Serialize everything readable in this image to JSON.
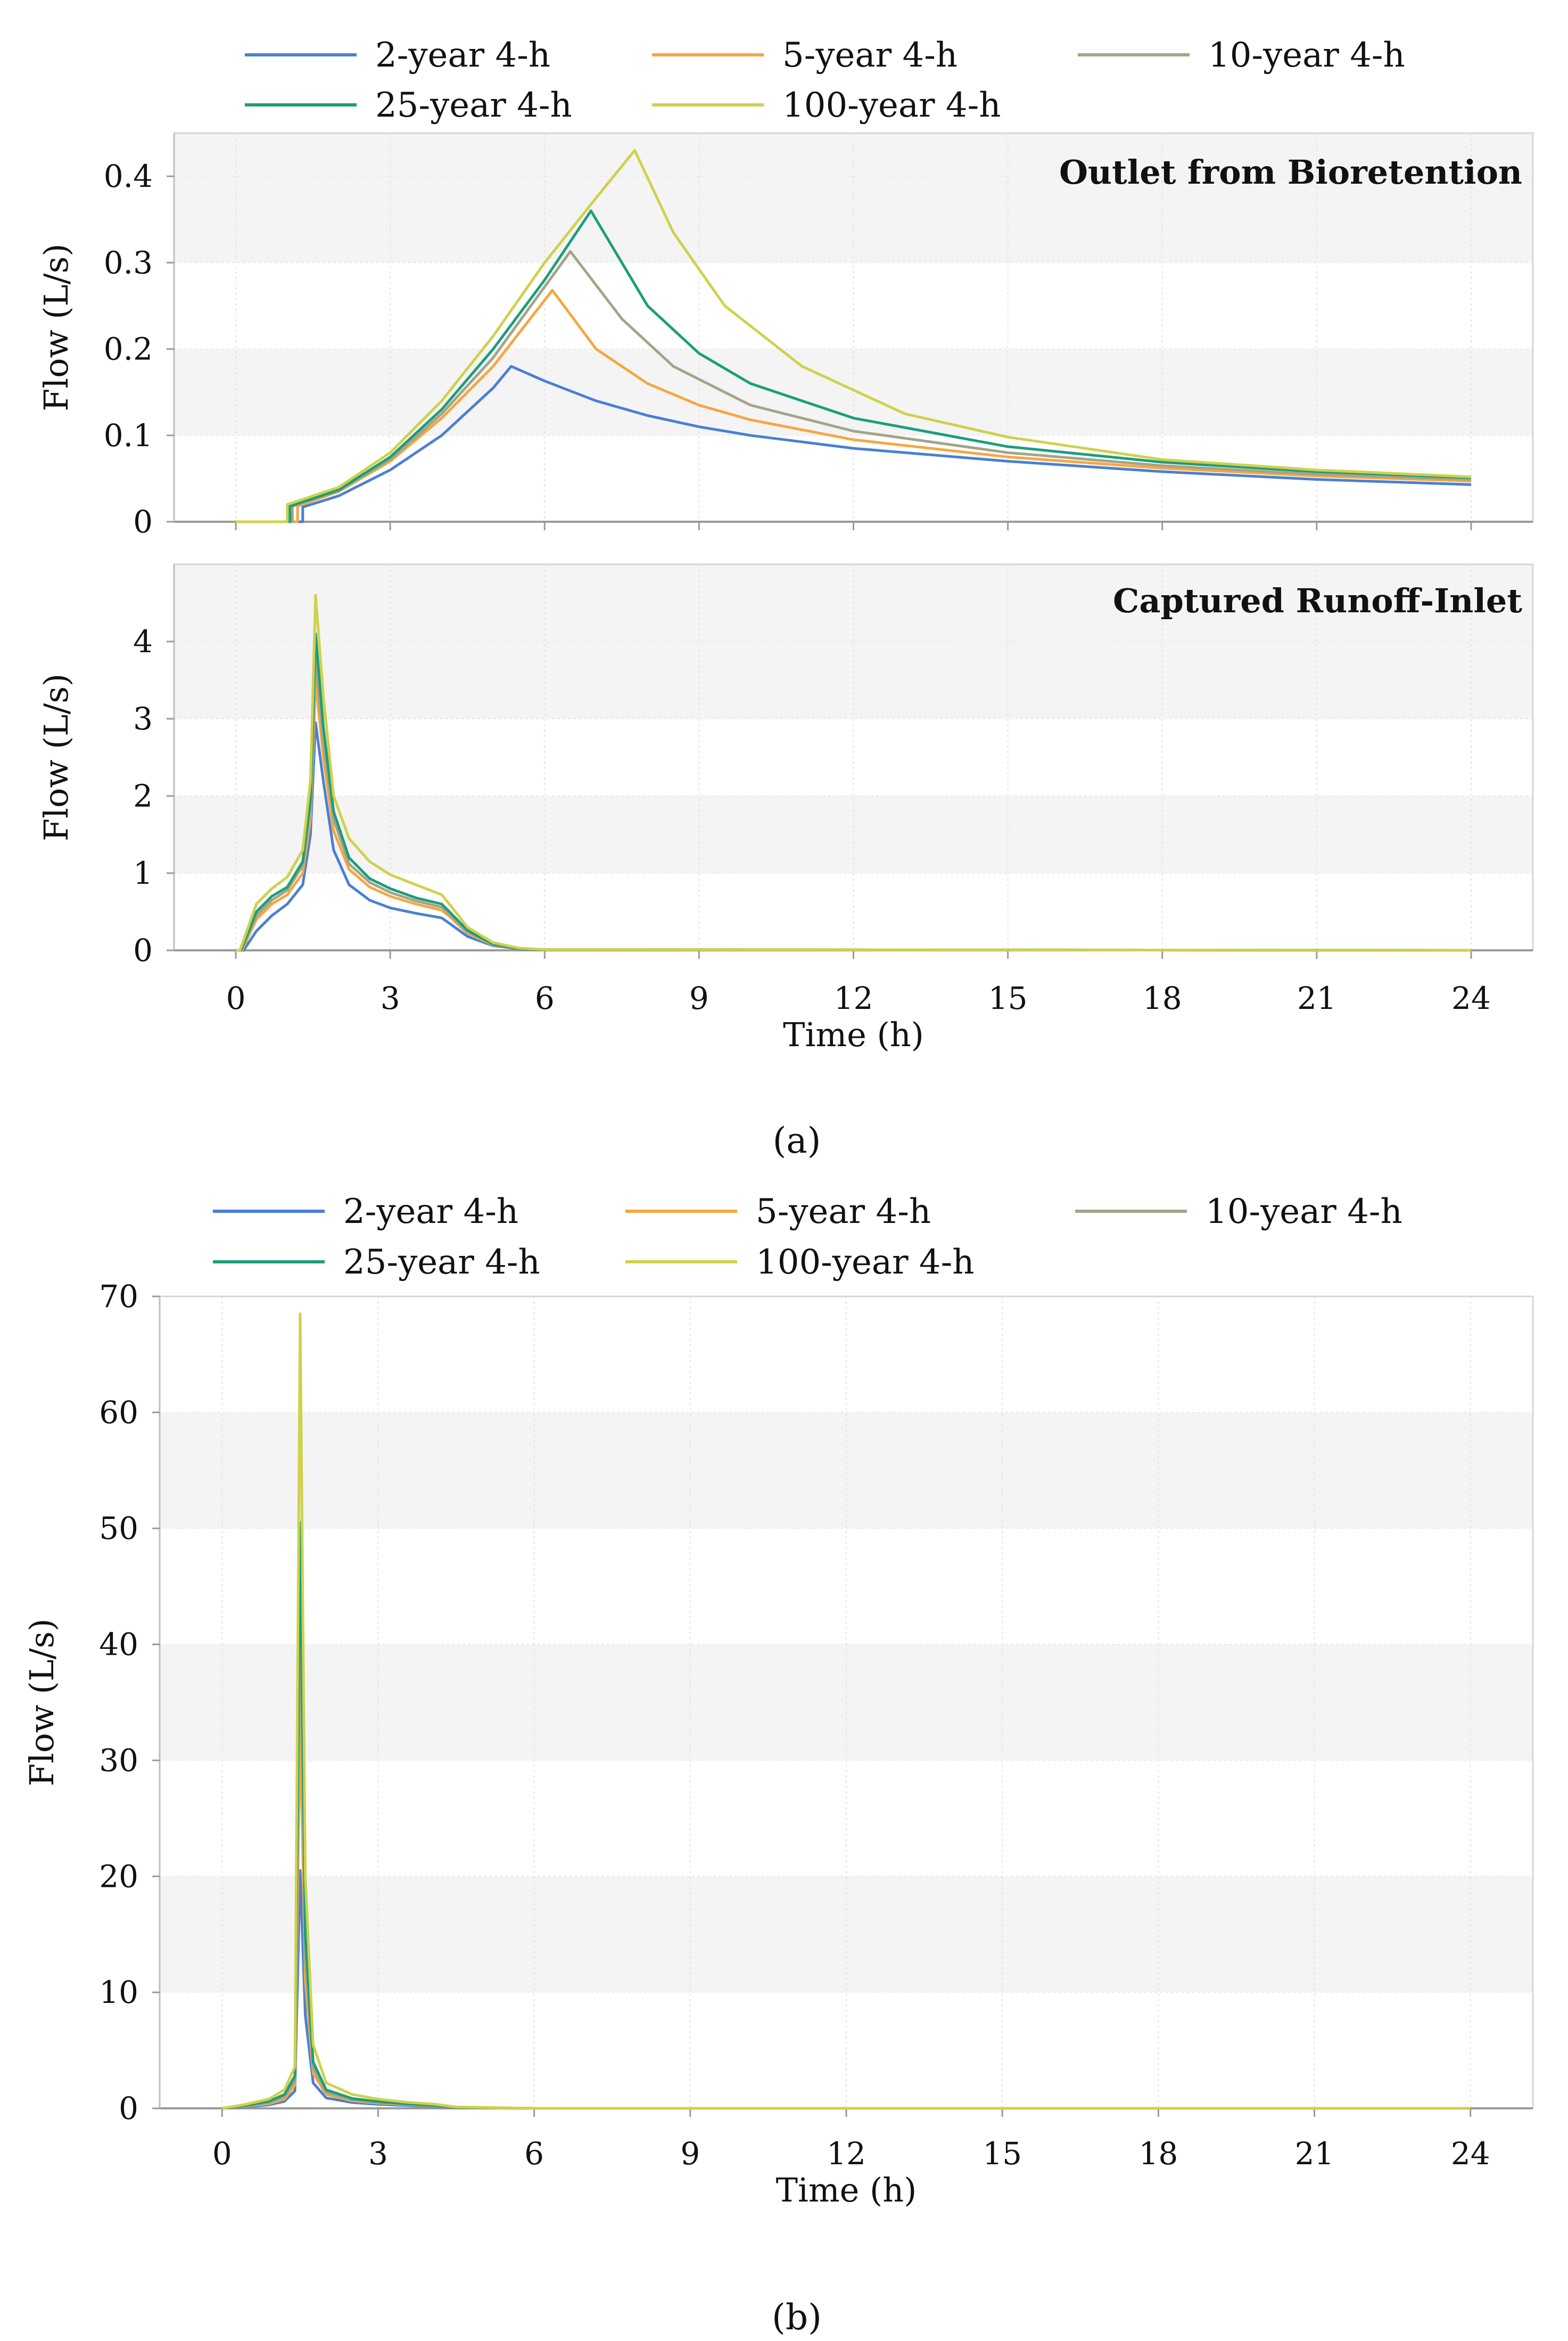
{
  "figure": {
    "caption_a": "(a)",
    "caption_b": "(b)"
  },
  "series_meta": [
    {
      "name": "2-year 4-h",
      "color": "#4a7fd4"
    },
    {
      "name": "5-year 4-h",
      "color": "#f5a742"
    },
    {
      "name": "10-year 4-h",
      "color": "#a4a488"
    },
    {
      "name": "25-year 4-h",
      "color": "#1c9e7a"
    },
    {
      "name": "100-year 4-h",
      "color": "#cfd14c"
    }
  ],
  "chart_data": [
    {
      "id": "a-top",
      "type": "line",
      "title": "Outlet from Bioretention",
      "xlabel": "Time (h)",
      "ylabel": "Flow (L/s)",
      "xlim": [
        -1.2,
        25.2
      ],
      "ylim": [
        0,
        0.45
      ],
      "yticks": [
        0,
        0.1,
        0.2,
        0.3,
        0.4
      ],
      "ytick_labels": [
        "0",
        "0.1",
        "0.2",
        "0.3",
        "0.4"
      ],
      "xticks": [
        0,
        3,
        6,
        9,
        12,
        15,
        18,
        21,
        24
      ],
      "show_xticks": false,
      "series": [
        {
          "name": "2-year 4-h",
          "x": [
            0,
            1.3,
            1.3,
            2,
            3,
            4,
            5,
            5.35,
            6,
            7,
            8,
            9,
            10,
            12,
            15,
            18,
            21,
            24
          ],
          "y": [
            0,
            0,
            0.017,
            0.03,
            0.06,
            0.1,
            0.155,
            0.18,
            0.163,
            0.14,
            0.123,
            0.11,
            0.1,
            0.085,
            0.07,
            0.058,
            0.049,
            0.043
          ]
        },
        {
          "name": "5-year 4-h",
          "x": [
            0,
            1.2,
            1.2,
            2,
            3,
            4,
            5,
            6.15,
            7,
            8,
            9,
            10,
            12,
            15,
            18,
            21,
            24
          ],
          "y": [
            0,
            0,
            0.018,
            0.035,
            0.07,
            0.12,
            0.18,
            0.268,
            0.2,
            0.16,
            0.135,
            0.118,
            0.095,
            0.075,
            0.062,
            0.053,
            0.047
          ]
        },
        {
          "name": "10-year 4-h",
          "x": [
            0,
            1.1,
            1.1,
            2,
            3,
            4,
            5,
            6.5,
            7.5,
            8.5,
            10,
            12,
            15,
            18,
            21,
            24
          ],
          "y": [
            0,
            0,
            0.018,
            0.036,
            0.072,
            0.125,
            0.19,
            0.313,
            0.235,
            0.18,
            0.135,
            0.105,
            0.08,
            0.065,
            0.055,
            0.049
          ]
        },
        {
          "name": "25-year 4-h",
          "x": [
            0,
            1.05,
            1.05,
            2,
            3,
            4,
            5,
            6,
            6.9,
            8,
            9,
            10,
            12,
            15,
            18,
            21,
            24
          ],
          "y": [
            0,
            0,
            0.018,
            0.037,
            0.075,
            0.13,
            0.2,
            0.28,
            0.36,
            0.25,
            0.195,
            0.16,
            0.12,
            0.087,
            0.069,
            0.058,
            0.051
          ]
        },
        {
          "name": "100-year 4-h",
          "x": [
            0,
            1.0,
            1.0,
            2,
            3,
            4,
            5,
            6,
            7,
            7.75,
            8.5,
            9.5,
            11,
            13,
            15,
            18,
            21,
            24
          ],
          "y": [
            0,
            0,
            0.02,
            0.04,
            0.08,
            0.14,
            0.215,
            0.3,
            0.375,
            0.43,
            0.335,
            0.25,
            0.18,
            0.125,
            0.098,
            0.072,
            0.06,
            0.052
          ]
        }
      ]
    },
    {
      "id": "a-bottom",
      "type": "line",
      "title": "Captured Runoff-Inlet",
      "xlabel": "Time (h)",
      "ylabel": "Flow (L/s)",
      "xlim": [
        -1.2,
        25.2
      ],
      "ylim": [
        0,
        5
      ],
      "yticks": [
        0,
        1,
        2,
        3,
        4
      ],
      "ytick_labels": [
        "0",
        "1",
        "2",
        "3",
        "4"
      ],
      "xticks": [
        0,
        3,
        6,
        9,
        12,
        15,
        18,
        21,
        24
      ],
      "show_xticks": true,
      "series": [
        {
          "name": "2-year 4-h",
          "x": [
            0,
            0.15,
            0.4,
            0.7,
            1.0,
            1.3,
            1.45,
            1.55,
            1.7,
            1.9,
            2.2,
            2.6,
            3,
            3.5,
            4.0,
            4.15,
            4.5,
            5,
            5.5,
            6,
            24
          ],
          "y": [
            0,
            0,
            0.25,
            0.45,
            0.6,
            0.85,
            1.5,
            2.95,
            2.2,
            1.3,
            0.85,
            0.65,
            0.55,
            0.48,
            0.42,
            0.35,
            0.18,
            0.06,
            0.02,
            0.01,
            0
          ]
        },
        {
          "name": "5-year 4-h",
          "x": [
            0,
            0.12,
            0.4,
            0.7,
            1.0,
            1.3,
            1.45,
            1.55,
            1.7,
            1.9,
            2.2,
            2.6,
            3,
            3.5,
            4.0,
            4.15,
            4.5,
            5,
            5.5,
            6,
            24
          ],
          "y": [
            0,
            0,
            0.4,
            0.6,
            0.72,
            1.0,
            1.7,
            3.5,
            2.5,
            1.55,
            1.05,
            0.82,
            0.7,
            0.6,
            0.52,
            0.44,
            0.22,
            0.07,
            0.02,
            0.01,
            0
          ]
        },
        {
          "name": "10-year 4-h",
          "x": [
            0,
            0.1,
            0.4,
            0.7,
            1.0,
            1.3,
            1.45,
            1.55,
            1.7,
            1.9,
            2.2,
            2.6,
            3,
            3.5,
            4.0,
            4.15,
            4.5,
            5,
            5.5,
            6,
            24
          ],
          "y": [
            0,
            0,
            0.45,
            0.65,
            0.78,
            1.1,
            1.85,
            3.8,
            2.7,
            1.7,
            1.12,
            0.88,
            0.75,
            0.64,
            0.56,
            0.47,
            0.24,
            0.08,
            0.02,
            0.01,
            0
          ]
        },
        {
          "name": "25-year 4-h",
          "x": [
            0,
            0.1,
            0.4,
            0.7,
            1.0,
            1.3,
            1.45,
            1.55,
            1.7,
            1.9,
            2.2,
            2.6,
            3,
            3.5,
            4.0,
            4.15,
            4.5,
            5,
            5.5,
            6,
            24
          ],
          "y": [
            0,
            0,
            0.5,
            0.7,
            0.82,
            1.15,
            1.95,
            4.1,
            2.9,
            1.8,
            1.2,
            0.93,
            0.8,
            0.68,
            0.6,
            0.5,
            0.26,
            0.08,
            0.02,
            0.01,
            0
          ]
        },
        {
          "name": "100-year 4-h",
          "x": [
            0,
            0.08,
            0.4,
            0.7,
            1.0,
            1.3,
            1.45,
            1.55,
            1.7,
            1.9,
            2.2,
            2.6,
            3,
            3.5,
            4.0,
            4.15,
            4.5,
            5,
            5.5,
            6,
            24
          ],
          "y": [
            0,
            0,
            0.6,
            0.8,
            0.95,
            1.3,
            2.2,
            4.6,
            3.3,
            2.0,
            1.45,
            1.15,
            0.98,
            0.85,
            0.72,
            0.6,
            0.3,
            0.1,
            0.03,
            0.01,
            0
          ]
        }
      ]
    },
    {
      "id": "b",
      "type": "line",
      "title": "",
      "xlabel": "Time (h)",
      "ylabel": "Flow (L/s)",
      "xlim": [
        -1.2,
        25.2
      ],
      "ylim": [
        0,
        70
      ],
      "yticks": [
        0,
        10,
        20,
        30,
        40,
        50,
        60,
        70
      ],
      "ytick_labels": [
        "0",
        "10",
        "20",
        "30",
        "40",
        "50",
        "60",
        "70"
      ],
      "xticks": [
        0,
        3,
        6,
        9,
        12,
        15,
        18,
        21,
        24
      ],
      "show_xticks": true,
      "series": [
        {
          "name": "2-year 4-h",
          "x": [
            0,
            0.4,
            0.9,
            1.2,
            1.4,
            1.5,
            1.6,
            1.75,
            2.0,
            2.5,
            3,
            3.5,
            4.1,
            4.5,
            6,
            24
          ],
          "y": [
            0,
            0.1,
            0.3,
            0.6,
            1.5,
            20.5,
            8,
            2.2,
            0.9,
            0.5,
            0.35,
            0.25,
            0.15,
            0.05,
            0,
            0
          ]
        },
        {
          "name": "5-year 4-h",
          "x": [
            0,
            0.4,
            0.9,
            1.2,
            1.4,
            1.5,
            1.6,
            1.75,
            2.0,
            2.5,
            3,
            3.5,
            4.1,
            4.5,
            6,
            24
          ],
          "y": [
            0,
            0.15,
            0.4,
            0.8,
            2.0,
            33.5,
            11,
            3.0,
            1.2,
            0.65,
            0.45,
            0.32,
            0.2,
            0.07,
            0,
            0
          ]
        },
        {
          "name": "10-year 4-h",
          "x": [
            0,
            0.4,
            0.9,
            1.2,
            1.4,
            1.5,
            1.6,
            1.75,
            2.0,
            2.5,
            3,
            3.5,
            4.1,
            4.5,
            6,
            24
          ],
          "y": [
            0,
            0.18,
            0.5,
            1.0,
            2.4,
            42.5,
            13,
            3.5,
            1.4,
            0.75,
            0.5,
            0.36,
            0.22,
            0.08,
            0,
            0
          ]
        },
        {
          "name": "25-year 4-h",
          "x": [
            0,
            0.4,
            0.9,
            1.2,
            1.4,
            1.5,
            1.6,
            1.75,
            2.0,
            2.5,
            3,
            3.5,
            4.1,
            4.5,
            6,
            24
          ],
          "y": [
            0,
            0.2,
            0.6,
            1.2,
            2.8,
            50.5,
            15,
            4.0,
            1.6,
            0.85,
            0.58,
            0.4,
            0.25,
            0.09,
            0,
            0
          ]
        },
        {
          "name": "100-year 4-h",
          "x": [
            0,
            0.4,
            0.9,
            1.2,
            1.4,
            1.5,
            1.6,
            1.75,
            2.0,
            2.5,
            3,
            3.5,
            4.1,
            4.5,
            6,
            24
          ],
          "y": [
            0,
            0.3,
            0.8,
            1.6,
            3.6,
            68.5,
            20,
            5.5,
            2.2,
            1.2,
            0.8,
            0.55,
            0.35,
            0.12,
            0,
            0
          ]
        }
      ]
    }
  ]
}
